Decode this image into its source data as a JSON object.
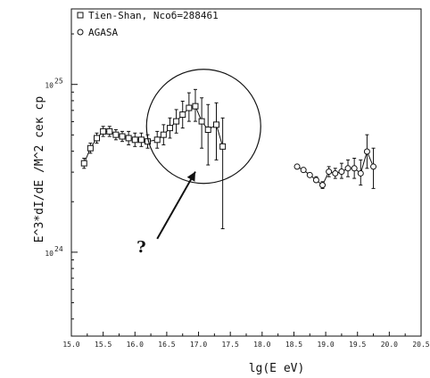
{
  "chart_data": {
    "type": "scatter",
    "xlabel": "lg(E eV)",
    "ylabel": "E^3*dI/dE /M^2 сек ср",
    "xlim": [
      15.0,
      20.5
    ],
    "ylim_log10": [
      23.5,
      25.45
    ],
    "y_scale": "log",
    "x_ticks": [
      "15.0",
      "15.5",
      "16.0",
      "16.5",
      "17.0",
      "17.5",
      "18.0",
      "18.5",
      "19.0",
      "19.5",
      "20.0",
      "20.5"
    ],
    "y_ticks": [
      {
        "exp": 24,
        "label_base": "10",
        "label_exp": "24"
      },
      {
        "exp": 25,
        "label_base": "10",
        "label_exp": "25"
      }
    ],
    "legend_position": "top-left",
    "series": [
      {
        "name": "Tien-Shan, Nсоб=288461",
        "marker": "square",
        "points": [
          {
            "x": 15.2,
            "y": 24.53,
            "lo": 24.5,
            "hi": 24.56
          },
          {
            "x": 15.3,
            "y": 24.62,
            "lo": 24.59,
            "hi": 24.65
          },
          {
            "x": 15.4,
            "y": 24.68,
            "lo": 24.65,
            "hi": 24.71
          },
          {
            "x": 15.5,
            "y": 24.72,
            "lo": 24.69,
            "hi": 24.75
          },
          {
            "x": 15.6,
            "y": 24.72,
            "lo": 24.69,
            "hi": 24.75
          },
          {
            "x": 15.7,
            "y": 24.7,
            "lo": 24.67,
            "hi": 24.73
          },
          {
            "x": 15.8,
            "y": 24.69,
            "lo": 24.66,
            "hi": 24.72
          },
          {
            "x": 15.9,
            "y": 24.68,
            "lo": 24.64,
            "hi": 24.72
          },
          {
            "x": 16.0,
            "y": 24.67,
            "lo": 24.63,
            "hi": 24.71
          },
          {
            "x": 16.1,
            "y": 24.67,
            "lo": 24.63,
            "hi": 24.71
          },
          {
            "x": 16.2,
            "y": 24.66,
            "lo": 24.62,
            "hi": 24.7
          },
          {
            "x": 16.35,
            "y": 24.67,
            "lo": 24.62,
            "hi": 24.72
          },
          {
            "x": 16.45,
            "y": 24.7,
            "lo": 24.64,
            "hi": 24.76
          },
          {
            "x": 16.55,
            "y": 24.74,
            "lo": 24.68,
            "hi": 24.8
          },
          {
            "x": 16.65,
            "y": 24.78,
            "lo": 24.71,
            "hi": 24.85
          },
          {
            "x": 16.75,
            "y": 24.82,
            "lo": 24.74,
            "hi": 24.9
          },
          {
            "x": 16.85,
            "y": 24.86,
            "lo": 24.78,
            "hi": 24.95
          },
          {
            "x": 16.95,
            "y": 24.87,
            "lo": 24.78,
            "hi": 24.97
          },
          {
            "x": 17.05,
            "y": 24.78,
            "lo": 24.62,
            "hi": 24.92
          },
          {
            "x": 17.15,
            "y": 24.73,
            "lo": 24.52,
            "hi": 24.88
          },
          {
            "x": 17.28,
            "y": 24.76,
            "lo": 24.55,
            "hi": 24.89
          },
          {
            "x": 17.38,
            "y": 24.63,
            "lo": 24.14,
            "hi": 24.8
          }
        ]
      },
      {
        "name": "AGASA",
        "marker": "circle",
        "points": [
          {
            "x": 18.55,
            "y": 24.51,
            "lo": 24.5,
            "hi": 24.52
          },
          {
            "x": 18.65,
            "y": 24.49,
            "lo": 24.48,
            "hi": 24.5
          },
          {
            "x": 18.75,
            "y": 24.46,
            "lo": 24.45,
            "hi": 24.47
          },
          {
            "x": 18.85,
            "y": 24.43,
            "lo": 24.42,
            "hi": 24.45
          },
          {
            "x": 18.95,
            "y": 24.4,
            "lo": 24.38,
            "hi": 24.42
          },
          {
            "x": 19.05,
            "y": 24.48,
            "lo": 24.45,
            "hi": 24.51
          },
          {
            "x": 19.15,
            "y": 24.47,
            "lo": 24.44,
            "hi": 24.5
          },
          {
            "x": 19.25,
            "y": 24.48,
            "lo": 24.44,
            "hi": 24.53
          },
          {
            "x": 19.35,
            "y": 24.5,
            "lo": 24.45,
            "hi": 24.55
          },
          {
            "x": 19.45,
            "y": 24.5,
            "lo": 24.44,
            "hi": 24.56
          },
          {
            "x": 19.55,
            "y": 24.47,
            "lo": 24.4,
            "hi": 24.55
          },
          {
            "x": 19.65,
            "y": 24.6,
            "lo": 24.5,
            "hi": 24.7
          },
          {
            "x": 19.75,
            "y": 24.51,
            "lo": 24.38,
            "hi": 24.62
          }
        ]
      }
    ],
    "annotations": [
      {
        "type": "circle",
        "cx": 17.08,
        "cy_log10": 24.75
      },
      {
        "type": "arrow",
        "from_x": 16.35,
        "from_log10": 24.08,
        "to_x": 16.95,
        "to_log10": 24.48
      },
      {
        "type": "text",
        "text": "?",
        "x": 16.1,
        "y_log10": 24.0
      }
    ]
  }
}
